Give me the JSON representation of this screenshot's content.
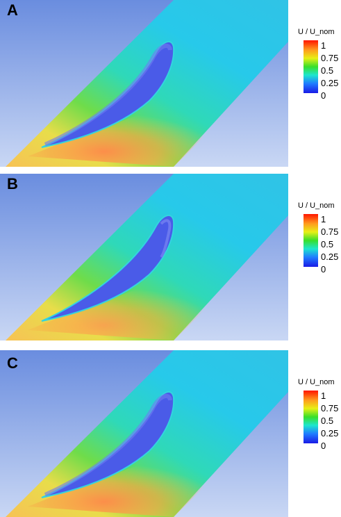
{
  "panels": [
    {
      "label": "A",
      "legend_title": "U / U_nom",
      "legend_ticks": [
        "1",
        "0.75",
        "0.5",
        "0.25",
        "0"
      ]
    },
    {
      "label": "B",
      "legend_title": "U / U_nom",
      "legend_ticks": [
        "1",
        "0.75",
        "0.5",
        "0.25",
        "0"
      ]
    },
    {
      "label": "C",
      "legend_title": "U / U_nom",
      "legend_ticks": [
        "1",
        "0.75",
        "0.5",
        "0.25",
        "0"
      ]
    }
  ],
  "colormap": [
    "#1a1ae6",
    "#1f7bff",
    "#1ce6cf",
    "#38df2a",
    "#e7f016",
    "#ff9a1e",
    "#ff1500"
  ],
  "background_gradient": [
    "#6d8fe0",
    "#c7d6f4"
  ]
}
